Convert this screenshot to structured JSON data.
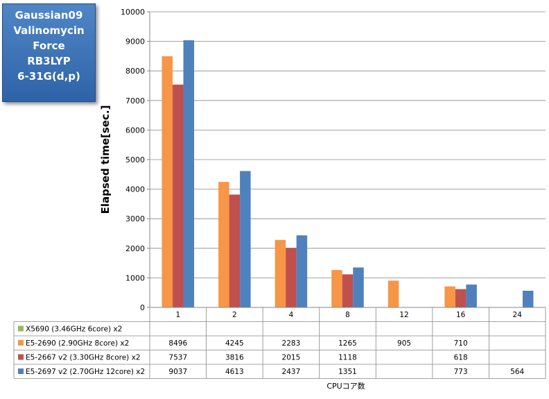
{
  "title_lines": [
    "Gaussian09",
    "Valinomycin",
    "Force",
    "RB3LYP",
    "6-31G(d,p)"
  ],
  "chart_data": {
    "type": "bar",
    "ylabel": "Elapsed time[sec.]",
    "xlabel": "CPUコア数",
    "ylim": [
      0,
      10000
    ],
    "yticks": [
      0,
      1000,
      2000,
      3000,
      4000,
      5000,
      6000,
      7000,
      8000,
      9000,
      10000
    ],
    "grid": true,
    "legend": "data-table-below",
    "categories": [
      "1",
      "2",
      "4",
      "8",
      "12",
      "16",
      "24"
    ],
    "series": [
      {
        "name": "X5690 (3.46GHz 6core) x2",
        "color": "#9bbb59",
        "values": [
          null,
          null,
          null,
          null,
          null,
          null,
          null
        ]
      },
      {
        "name": "E5-2690 (2.90GHz 8core) x2",
        "color": "#f79646",
        "values": [
          8496,
          4245,
          2283,
          1265,
          905,
          710,
          null
        ]
      },
      {
        "name": "E5-2667 v2 (3.30GHz 8core) x2",
        "color": "#c0504d",
        "values": [
          7537,
          3816,
          2015,
          1118,
          null,
          618,
          null
        ]
      },
      {
        "name": "E5-2697 v2 (2.70GHz 12core) x2",
        "color": "#4f81bd",
        "values": [
          9037,
          4613,
          2437,
          1351,
          null,
          773,
          564
        ]
      }
    ]
  }
}
